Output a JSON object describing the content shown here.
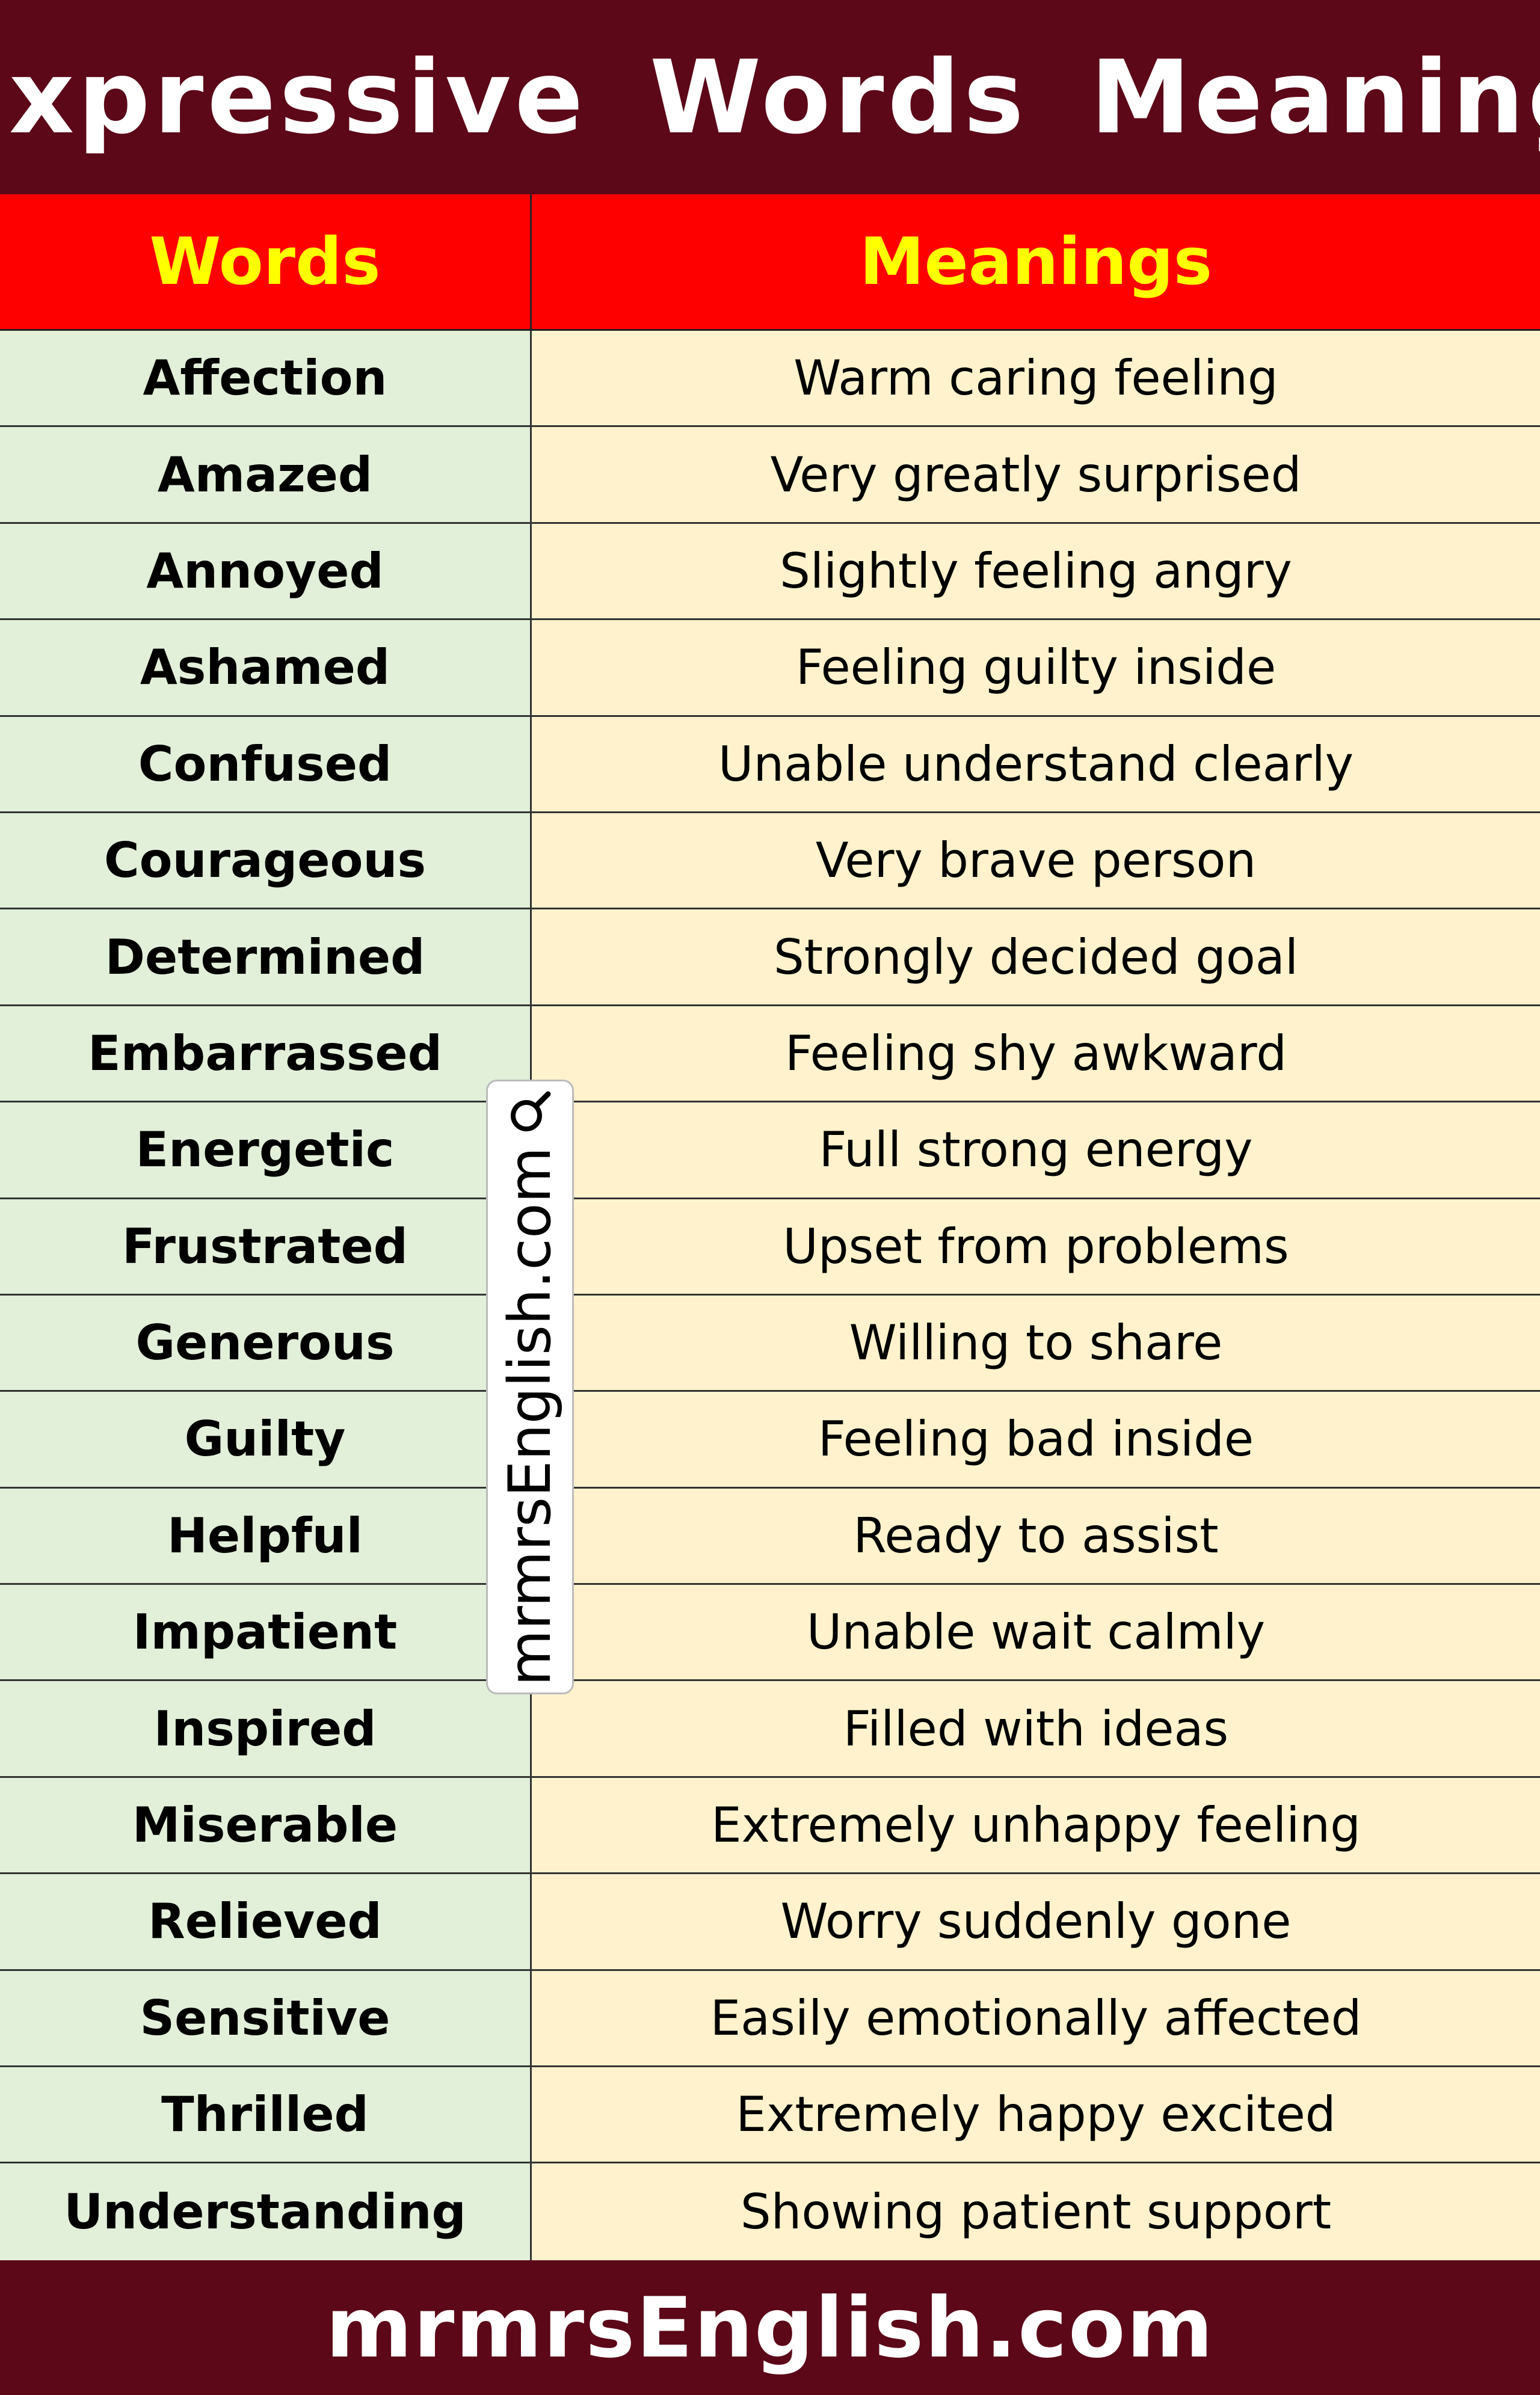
{
  "title": "Expressive Words Meaning",
  "table": {
    "headers": {
      "word": "Words",
      "meaning": "Meanings"
    },
    "rows": [
      {
        "word": "Affection",
        "meaning": "Warm caring feeling"
      },
      {
        "word": "Amazed",
        "meaning": "Very greatly surprised"
      },
      {
        "word": "Annoyed",
        "meaning": "Slightly feeling angry"
      },
      {
        "word": "Ashamed",
        "meaning": "Feeling guilty inside"
      },
      {
        "word": "Confused",
        "meaning": "Unable understand clearly"
      },
      {
        "word": "Courageous",
        "meaning": "Very brave person"
      },
      {
        "word": "Determined",
        "meaning": "Strongly decided goal"
      },
      {
        "word": "Embarrassed",
        "meaning": "Feeling shy awkward"
      },
      {
        "word": "Energetic",
        "meaning": "Full strong energy"
      },
      {
        "word": "Frustrated",
        "meaning": "Upset from problems"
      },
      {
        "word": "Generous",
        "meaning": "Willing to share"
      },
      {
        "word": "Guilty",
        "meaning": "Feeling bad inside"
      },
      {
        "word": "Helpful",
        "meaning": "Ready to assist"
      },
      {
        "word": "Impatient",
        "meaning": "Unable wait calmly"
      },
      {
        "word": "Inspired",
        "meaning": "Filled with ideas"
      },
      {
        "word": "Miserable",
        "meaning": "Extremely unhappy feeling"
      },
      {
        "word": "Relieved",
        "meaning": "Worry suddenly gone"
      },
      {
        "word": "Sensitive",
        "meaning": "Easily emotionally affected"
      },
      {
        "word": "Thrilled",
        "meaning": "Extremely happy excited"
      },
      {
        "word": "Understanding",
        "meaning": "Showing patient support"
      }
    ]
  },
  "watermark": {
    "text": "mrmrsEnglish.com",
    "icon": "search-icon"
  },
  "footer": {
    "text": "mrmrsEnglish.com"
  },
  "colors": {
    "banner": "#5c0818",
    "header_bg": "#ff0000",
    "header_text": "#ffff00",
    "word_col_bg": "#e2efd9",
    "meaning_col_bg": "#fff2cc"
  }
}
